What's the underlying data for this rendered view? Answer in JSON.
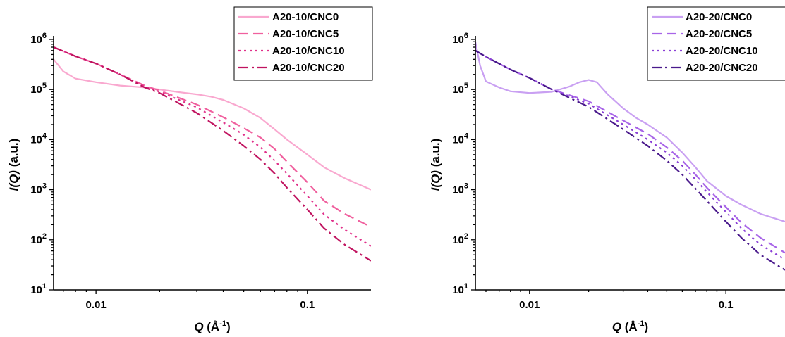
{
  "chart_data": [
    {
      "type": "line",
      "xlabel": "Q (Å⁻¹)",
      "xlabel_main": "Q",
      "xlabel_unit": "(Å",
      "xlabel_exp": "-1",
      "xlabel_close": ")",
      "ylabel_main": "I(Q)",
      "ylabel_unit": "(a.u.)",
      "xscale": "log",
      "yscale": "log",
      "xlim": [
        0.0063,
        0.2
      ],
      "ylim": [
        10,
        1000000
      ],
      "x_ticks": [
        {
          "value": 0.01,
          "label": "0.01"
        },
        {
          "value": 0.1,
          "label": "0.1"
        }
      ],
      "y_ticks": [
        {
          "value": 10,
          "base": "10",
          "exp": "1"
        },
        {
          "value": 100,
          "base": "10",
          "exp": "2"
        },
        {
          "value": 1000,
          "base": "10",
          "exp": "3"
        },
        {
          "value": 10000,
          "base": "10",
          "exp": "4"
        },
        {
          "value": 100000,
          "base": "10",
          "exp": "5"
        },
        {
          "value": 1000000,
          "base": "10",
          "exp": "6"
        }
      ],
      "legend_position": "top-right",
      "series": [
        {
          "name": "A20-10/CNC0",
          "color": "#f9a8cf",
          "style": "solid",
          "points": [
            [
              0.0063,
              400000
            ],
            [
              0.007,
              230000
            ],
            [
              0.008,
              165000
            ],
            [
              0.01,
              140000
            ],
            [
              0.013,
              120000
            ],
            [
              0.017,
              110000
            ],
            [
              0.02,
              100000
            ],
            [
              0.025,
              88000
            ],
            [
              0.03,
              80000
            ],
            [
              0.035,
              72000
            ],
            [
              0.04,
              62000
            ],
            [
              0.05,
              42000
            ],
            [
              0.06,
              27000
            ],
            [
              0.07,
              16000
            ],
            [
              0.08,
              10000
            ],
            [
              0.1,
              5000
            ],
            [
              0.12,
              2800
            ],
            [
              0.15,
              1700
            ],
            [
              0.2,
              1000
            ]
          ]
        },
        {
          "name": "A20-10/CNC5",
          "color": "#f0609e",
          "style": "dash",
          "points": [
            [
              0.0063,
              700000
            ],
            [
              0.008,
              460000
            ],
            [
              0.01,
              330000
            ],
            [
              0.013,
              200000
            ],
            [
              0.017,
              120000
            ],
            [
              0.02,
              95000
            ],
            [
              0.03,
              50000
            ],
            [
              0.04,
              28000
            ],
            [
              0.05,
              17000
            ],
            [
              0.06,
              11000
            ],
            [
              0.07,
              6500
            ],
            [
              0.08,
              3600
            ],
            [
              0.1,
              1400
            ],
            [
              0.12,
              600
            ],
            [
              0.15,
              330
            ],
            [
              0.2,
              180
            ]
          ]
        },
        {
          "name": "A20-10/CNC10",
          "color": "#e0308a",
          "style": "dot",
          "points": [
            [
              0.0063,
              700000
            ],
            [
              0.008,
              460000
            ],
            [
              0.01,
              330000
            ],
            [
              0.013,
              200000
            ],
            [
              0.017,
              115000
            ],
            [
              0.02,
              90000
            ],
            [
              0.03,
              44000
            ],
            [
              0.04,
              22000
            ],
            [
              0.05,
              12500
            ],
            [
              0.06,
              7000
            ],
            [
              0.07,
              3800
            ],
            [
              0.08,
              2100
            ],
            [
              0.1,
              750
            ],
            [
              0.12,
              320
            ],
            [
              0.15,
              160
            ],
            [
              0.2,
              75
            ]
          ]
        },
        {
          "name": "A20-10/CNC20",
          "color": "#c0135f",
          "style": "dashdot",
          "points": [
            [
              0.0063,
              700000
            ],
            [
              0.008,
              460000
            ],
            [
              0.01,
              330000
            ],
            [
              0.013,
              200000
            ],
            [
              0.017,
              110000
            ],
            [
              0.02,
              85000
            ],
            [
              0.03,
              34000
            ],
            [
              0.04,
              15000
            ],
            [
              0.05,
              7500
            ],
            [
              0.06,
              4000
            ],
            [
              0.07,
              2100
            ],
            [
              0.08,
              1100
            ],
            [
              0.1,
              400
            ],
            [
              0.12,
              170
            ],
            [
              0.15,
              80
            ],
            [
              0.2,
              38
            ]
          ]
        }
      ]
    },
    {
      "type": "line",
      "xlabel": "Q (Å⁻¹)",
      "xlabel_main": "Q",
      "xlabel_unit": "(Å",
      "xlabel_exp": "-1",
      "xlabel_close": ")",
      "ylabel_main": "I(Q)",
      "ylabel_unit": "(a.u.)",
      "xscale": "log",
      "yscale": "log",
      "xlim": [
        0.0053,
        0.2
      ],
      "ylim": [
        10,
        1000000
      ],
      "x_ticks": [
        {
          "value": 0.01,
          "label": "0.01"
        },
        {
          "value": 0.1,
          "label": "0.1"
        }
      ],
      "y_ticks": [
        {
          "value": 10,
          "base": "10",
          "exp": "1"
        },
        {
          "value": 100,
          "base": "10",
          "exp": "2"
        },
        {
          "value": 1000,
          "base": "10",
          "exp": "3"
        },
        {
          "value": 10000,
          "base": "10",
          "exp": "4"
        },
        {
          "value": 100000,
          "base": "10",
          "exp": "5"
        },
        {
          "value": 1000000,
          "base": "10",
          "exp": "6"
        }
      ],
      "legend_position": "top-right",
      "series": [
        {
          "name": "A20-20/CNC0",
          "color": "#c9a0f2",
          "style": "solid",
          "points": [
            [
              0.0053,
              900000
            ],
            [
              0.0056,
              300000
            ],
            [
              0.006,
              145000
            ],
            [
              0.007,
              110000
            ],
            [
              0.008,
              92000
            ],
            [
              0.01,
              85000
            ],
            [
              0.013,
              90000
            ],
            [
              0.016,
              115000
            ],
            [
              0.018,
              140000
            ],
            [
              0.02,
              155000
            ],
            [
              0.022,
              140000
            ],
            [
              0.025,
              80000
            ],
            [
              0.03,
              42000
            ],
            [
              0.035,
              27000
            ],
            [
              0.04,
              20000
            ],
            [
              0.05,
              11000
            ],
            [
              0.06,
              5500
            ],
            [
              0.07,
              2800
            ],
            [
              0.08,
              1500
            ],
            [
              0.1,
              750
            ],
            [
              0.12,
              500
            ],
            [
              0.15,
              330
            ],
            [
              0.2,
              230
            ]
          ]
        },
        {
          "name": "A20-20/CNC5",
          "color": "#a865e8",
          "style": "dash",
          "points": [
            [
              0.0053,
              600000
            ],
            [
              0.006,
              450000
            ],
            [
              0.008,
              250000
            ],
            [
              0.01,
              170000
            ],
            [
              0.013,
              100000
            ],
            [
              0.02,
              58000
            ],
            [
              0.03,
              24000
            ],
            [
              0.04,
              13000
            ],
            [
              0.05,
              7000
            ],
            [
              0.06,
              3800
            ],
            [
              0.07,
              2000
            ],
            [
              0.08,
              1100
            ],
            [
              0.1,
              450
            ],
            [
              0.12,
              220
            ],
            [
              0.15,
              110
            ],
            [
              0.2,
              55
            ]
          ]
        },
        {
          "name": "A20-20/CNC10",
          "color": "#8a3fd6",
          "style": "dot",
          "points": [
            [
              0.0053,
              600000
            ],
            [
              0.006,
              450000
            ],
            [
              0.008,
              250000
            ],
            [
              0.01,
              170000
            ],
            [
              0.013,
              100000
            ],
            [
              0.02,
              52000
            ],
            [
              0.03,
              20000
            ],
            [
              0.04,
              10000
            ],
            [
              0.05,
              5500
            ],
            [
              0.06,
              3000
            ],
            [
              0.07,
              1600
            ],
            [
              0.08,
              900
            ],
            [
              0.1,
              360
            ],
            [
              0.12,
              170
            ],
            [
              0.15,
              80
            ],
            [
              0.2,
              40
            ]
          ]
        },
        {
          "name": "A20-20/CNC20",
          "color": "#4a1a8c",
          "style": "dashdot",
          "points": [
            [
              0.0053,
              600000
            ],
            [
              0.006,
              450000
            ],
            [
              0.008,
              250000
            ],
            [
              0.01,
              170000
            ],
            [
              0.013,
              100000
            ],
            [
              0.02,
              45000
            ],
            [
              0.03,
              16000
            ],
            [
              0.04,
              7500
            ],
            [
              0.05,
              3800
            ],
            [
              0.06,
              2000
            ],
            [
              0.07,
              1050
            ],
            [
              0.08,
              600
            ],
            [
              0.1,
              230
            ],
            [
              0.12,
              110
            ],
            [
              0.15,
              50
            ],
            [
              0.2,
              25
            ]
          ]
        }
      ]
    }
  ]
}
